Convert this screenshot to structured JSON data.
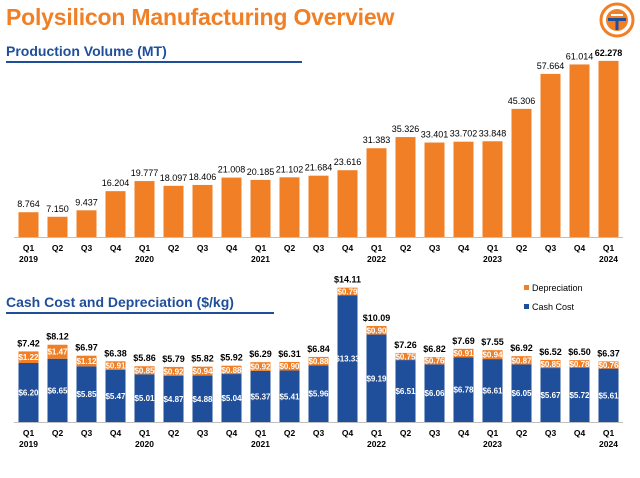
{
  "page": {
    "title": "Polysilicon Manufacturing Overview",
    "colors": {
      "orange": "#F07F26",
      "blue": "#1F4E9A",
      "title_orange": "#F07F26"
    }
  },
  "logo": {
    "icon": "company-logo-icon"
  },
  "production": {
    "section_title": "Production Volume (MT)"
  },
  "cash": {
    "section_title": "Cash Cost and Depreciation ($/kg)"
  },
  "chart_data": [
    {
      "type": "bar",
      "title": "Production Volume (MT)",
      "categories": [
        [
          "Q1",
          "2019"
        ],
        [
          "Q2",
          ""
        ],
        [
          "Q3",
          ""
        ],
        [
          "Q4",
          ""
        ],
        [
          "Q1",
          "2020"
        ],
        [
          "Q2",
          ""
        ],
        [
          "Q3",
          ""
        ],
        [
          "Q4",
          ""
        ],
        [
          "Q1",
          "2021"
        ],
        [
          "Q2",
          ""
        ],
        [
          "Q3",
          ""
        ],
        [
          "Q4",
          ""
        ],
        [
          "Q1",
          "2022"
        ],
        [
          "Q2",
          ""
        ],
        [
          "Q3",
          ""
        ],
        [
          "Q4",
          ""
        ],
        [
          "Q1",
          "2023"
        ],
        [
          "Q2",
          ""
        ],
        [
          "Q3",
          ""
        ],
        [
          "Q4",
          ""
        ],
        [
          "Q1",
          "2024"
        ]
      ],
      "values": [
        8.764,
        7.15,
        9.437,
        16.204,
        19.777,
        18.097,
        18.406,
        21.008,
        20.185,
        21.102,
        21.684,
        23.616,
        31.383,
        35.326,
        33.401,
        33.702,
        33.848,
        45.306,
        57.664,
        61.014,
        62.278
      ],
      "value_labels": [
        "8.764",
        "7.150",
        "9.437",
        "16.204",
        "19.777",
        "18.097",
        "18.406",
        "21.008",
        "20.185",
        "21.102",
        "21.684",
        "23.616",
        "31.383",
        "35.326",
        "33.401",
        "33.702",
        "33.848",
        "45.306",
        "57.664",
        "61.014",
        "62.278"
      ],
      "ylim": [
        0,
        64
      ],
      "color": "#F07F26",
      "xlabel": "",
      "ylabel": ""
    },
    {
      "type": "bar",
      "stacked": true,
      "title": "Cash Cost and Depreciation ($/kg)",
      "categories": [
        [
          "Q1",
          "2019"
        ],
        [
          "Q2",
          ""
        ],
        [
          "Q3",
          ""
        ],
        [
          "Q4",
          ""
        ],
        [
          "Q1",
          "2020"
        ],
        [
          "Q2",
          ""
        ],
        [
          "Q3",
          ""
        ],
        [
          "Q4",
          ""
        ],
        [
          "Q1",
          "2021"
        ],
        [
          "Q2",
          ""
        ],
        [
          "Q3",
          ""
        ],
        [
          "Q4",
          ""
        ],
        [
          "Q1",
          "2022"
        ],
        [
          "Q2",
          ""
        ],
        [
          "Q3",
          ""
        ],
        [
          "Q4",
          ""
        ],
        [
          "Q1",
          "2023"
        ],
        [
          "Q2",
          ""
        ],
        [
          "Q3",
          ""
        ],
        [
          "Q4",
          ""
        ],
        [
          "Q1",
          "2024"
        ]
      ],
      "series": [
        {
          "name": "Cash Cost",
          "color": "#1F4E9A",
          "values": [
            6.2,
            6.65,
            5.85,
            5.47,
            5.01,
            4.87,
            4.88,
            5.04,
            5.37,
            5.41,
            5.96,
            13.33,
            9.19,
            6.51,
            6.06,
            6.78,
            6.61,
            6.05,
            5.67,
            5.72,
            5.61
          ],
          "labels": [
            "$6.20",
            "$6.65",
            "$5.85",
            "$5.47",
            "$5.01",
            "$4.87",
            "$4.88",
            "$5.04",
            "$5.37",
            "$5.41",
            "$5.96",
            "$13.33",
            "$9.19",
            "$6.51",
            "$6.06",
            "$6.78",
            "$6.61",
            "$6.05",
            "$5.67",
            "$5.72",
            "$5.61"
          ]
        },
        {
          "name": "Depreciation",
          "color": "#F07F26",
          "values": [
            1.22,
            1.47,
            1.12,
            0.91,
            0.85,
            0.92,
            0.94,
            0.88,
            0.92,
            0.9,
            0.88,
            0.79,
            0.9,
            0.75,
            0.76,
            0.91,
            0.94,
            0.87,
            0.85,
            0.78,
            0.76
          ],
          "labels": [
            "$1.22",
            "$1.47",
            "$1.12",
            "$0.91",
            "$0.85",
            "$0.92",
            "$0.94",
            "$0.88",
            "$0.92",
            "$0.90",
            "$0.88",
            "$0.79",
            "$0.90",
            "$0.75",
            "$0.76",
            "$0.91",
            "$0.94",
            "$0.87",
            "$0.85",
            "$0.78",
            "$0.76"
          ]
        }
      ],
      "totals": [
        7.42,
        8.12,
        6.97,
        6.38,
        5.86,
        5.79,
        5.82,
        5.92,
        6.29,
        6.31,
        6.84,
        14.11,
        10.09,
        7.26,
        6.82,
        7.69,
        7.55,
        6.92,
        6.52,
        6.5,
        6.37
      ],
      "total_labels": [
        "$7.42",
        "$8.12",
        "$6.97",
        "$6.38",
        "$5.86",
        "$5.79",
        "$5.82",
        "$5.92",
        "$6.29",
        "$6.31",
        "$6.84",
        "$14.11",
        "$10.09",
        "$7.26",
        "$6.82",
        "$7.69",
        "$7.55",
        "$6.92",
        "$6.52",
        "$6.50",
        "$6.37"
      ],
      "legend": [
        "Depreciation",
        "Cash Cost"
      ],
      "legend_position": "top-right",
      "ylim": [
        0,
        14.4
      ]
    }
  ]
}
